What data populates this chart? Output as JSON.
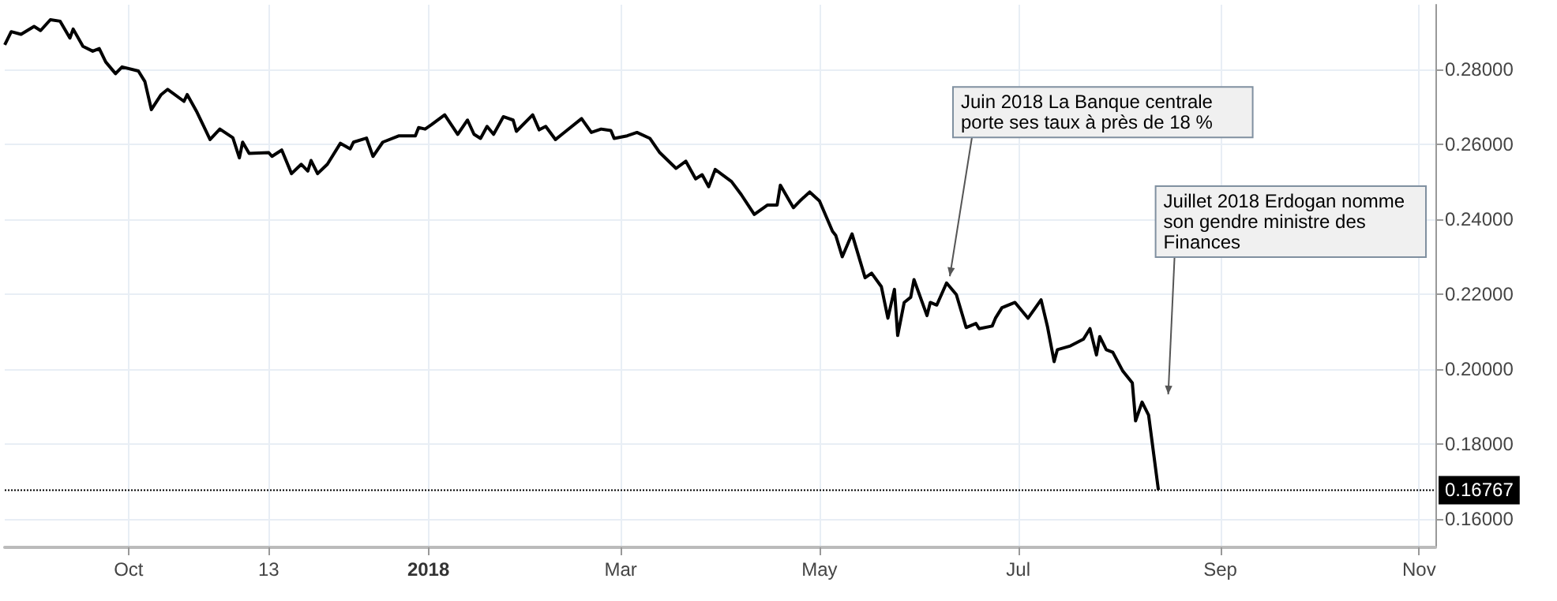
{
  "chart_data": {
    "type": "line",
    "x": [
      "2017-08-24",
      "2017-08-26",
      "2017-08-29",
      "2017-09-02",
      "2017-09-04",
      "2017-09-07",
      "2017-09-10",
      "2017-09-13",
      "2017-09-14",
      "2017-09-17",
      "2017-09-20",
      "2017-09-22",
      "2017-09-24",
      "2017-09-27",
      "2017-09-29",
      "2017-10-04",
      "2017-10-06",
      "2017-10-08",
      "2017-10-11",
      "2017-10-13",
      "2017-10-18",
      "2017-10-19",
      "2017-10-22",
      "2017-10-26",
      "2017-10-29",
      "2017-11-02",
      "2017-11-04",
      "2017-11-05",
      "2017-11-07",
      "2017-11-13",
      "2017-11-14",
      "2017-11-17",
      "2017-11-20",
      "2017-11-23",
      "2017-11-25",
      "2017-11-26",
      "2017-11-28",
      "2017-12-01",
      "2017-12-05",
      "2017-12-08",
      "2017-12-09",
      "2017-12-13",
      "2017-12-15",
      "2017-12-18",
      "2017-12-23",
      "2017-12-28",
      "2017-12-29",
      "2017-12-31",
      "2018-01-02",
      "2018-01-06",
      "2018-01-10",
      "2018-01-13",
      "2018-01-15",
      "2018-01-17",
      "2018-01-19",
      "2018-01-21",
      "2018-01-24",
      "2018-01-27",
      "2018-01-28",
      "2018-02-02",
      "2018-02-04",
      "2018-02-06",
      "2018-02-09",
      "2018-02-11",
      "2018-02-17",
      "2018-02-20",
      "2018-02-23",
      "2018-02-26",
      "2018-02-27",
      "2018-03-03",
      "2018-03-06",
      "2018-03-10",
      "2018-03-13",
      "2018-03-18",
      "2018-03-21",
      "2018-03-24",
      "2018-03-26",
      "2018-03-28",
      "2018-03-30",
      "2018-04-04",
      "2018-04-07",
      "2018-04-11",
      "2018-04-15",
      "2018-04-18",
      "2018-04-19",
      "2018-04-23",
      "2018-04-25",
      "2018-04-28",
      "2018-05-01",
      "2018-05-05",
      "2018-05-06",
      "2018-05-08",
      "2018-05-11",
      "2018-05-15",
      "2018-05-17",
      "2018-05-20",
      "2018-05-22",
      "2018-05-24",
      "2018-05-25",
      "2018-05-27",
      "2018-05-29",
      "2018-05-30",
      "2018-06-03",
      "2018-06-04",
      "2018-06-06",
      "2018-06-09",
      "2018-06-12",
      "2018-06-15",
      "2018-06-18",
      "2018-06-19",
      "2018-06-23",
      "2018-06-24",
      "2018-06-26",
      "2018-06-30",
      "2018-07-04",
      "2018-07-08",
      "2018-07-10",
      "2018-07-12",
      "2018-07-13",
      "2018-07-17",
      "2018-07-21",
      "2018-07-23",
      "2018-07-25",
      "2018-07-26",
      "2018-07-28",
      "2018-07-30",
      "2018-08-02",
      "2018-08-05",
      "2018-08-06",
      "2018-08-08",
      "2018-08-10",
      "2018-08-13"
    ],
    "series": [
      {
        "color": "#000000",
        "values": [
          0.2866,
          0.2901,
          0.2894,
          0.2915,
          0.2904,
          0.2933,
          0.2929,
          0.2884,
          0.2908,
          0.2862,
          0.2849,
          0.2856,
          0.282,
          0.2789,
          0.2807,
          0.2796,
          0.2768,
          0.2693,
          0.2733,
          0.2747,
          0.2715,
          0.2733,
          0.2686,
          0.2613,
          0.2641,
          0.2618,
          0.2564,
          0.2606,
          0.2576,
          0.2578,
          0.2568,
          0.2585,
          0.2522,
          0.2547,
          0.2529,
          0.2557,
          0.2522,
          0.2547,
          0.2603,
          0.2588,
          0.2606,
          0.2617,
          0.2568,
          0.2606,
          0.2623,
          0.2623,
          0.2645,
          0.2641,
          0.2653,
          0.2679,
          0.2627,
          0.2665,
          0.2627,
          0.2616,
          0.2648,
          0.2627,
          0.2674,
          0.2665,
          0.2635,
          0.2679,
          0.2639,
          0.2648,
          0.2613,
          0.2627,
          0.2669,
          0.2632,
          0.2641,
          0.2637,
          0.2616,
          0.2623,
          0.2632,
          0.2616,
          0.2578,
          0.2536,
          0.2555,
          0.2508,
          0.2519,
          0.2487,
          0.2533,
          0.2501,
          0.2466,
          0.2413,
          0.2438,
          0.2438,
          0.2491,
          0.2431,
          0.2449,
          0.2473,
          0.2449,
          0.2368,
          0.2357,
          0.23,
          0.2361,
          0.2244,
          0.2256,
          0.222,
          0.2136,
          0.2213,
          0.209,
          0.2178,
          0.2192,
          0.2239,
          0.2143,
          0.2178,
          0.2171,
          0.223,
          0.2199,
          0.2111,
          0.2122,
          0.2108,
          0.2115,
          0.2136,
          0.2164,
          0.2178,
          0.2136,
          0.2185,
          0.2112,
          0.202,
          0.2052,
          0.2062,
          0.208,
          0.2108,
          0.2038,
          0.2087,
          0.2052,
          0.2045,
          0.1996,
          0.1963,
          0.1862,
          0.1912,
          0.1877,
          0.1677
        ]
      }
    ],
    "xlim": [
      "2017-08-24",
      "2018-11-06"
    ],
    "xticks": [
      {
        "value": "2017-10-01",
        "label": "Oct"
      },
      {
        "value": "2017-11-13",
        "label": "13"
      },
      {
        "value": "2018-01-01",
        "label": "2018"
      },
      {
        "value": "2018-03-01",
        "label": "Mar"
      },
      {
        "value": "2018-05-01",
        "label": "May"
      },
      {
        "value": "2018-07-01",
        "label": "Jul"
      },
      {
        "value": "2018-09-01",
        "label": "Sep"
      },
      {
        "value": "2018-11-01",
        "label": "Nov"
      }
    ],
    "ylim": [
      0.1524,
      0.2973
    ],
    "yticks": [
      {
        "value": 0.16,
        "label": "0.16000"
      },
      {
        "value": 0.18,
        "label": "0.18000"
      },
      {
        "value": 0.2,
        "label": "0.20000"
      },
      {
        "value": 0.22,
        "label": "0.22000"
      },
      {
        "value": 0.24,
        "label": "0.24000"
      },
      {
        "value": 0.26,
        "label": "0.26000"
      },
      {
        "value": 0.28,
        "label": "0.28000"
      }
    ],
    "ref_lines": [
      {
        "axis": "y",
        "value": 0.16767,
        "label": "0.16767",
        "color": "#000000",
        "line_style": "dotted"
      }
    ],
    "annotations": [
      {
        "text": "Juin 2018 La Banque centrale\nporte ses taux à près de 18 %",
        "x": "2018-06-10",
        "y": 0.2248
      },
      "Juillet 2018 Erdogan nomme\nson gendre ministre des\nFinances"
    ],
    "grid": true,
    "line_style": "solid",
    "marker": "none"
  }
}
